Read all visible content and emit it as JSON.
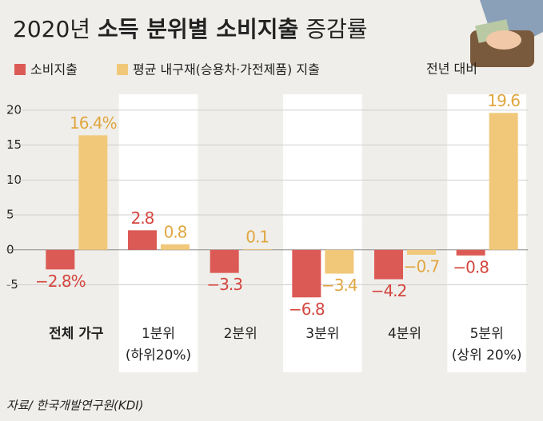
{
  "chart_data": {
    "type": "bar",
    "title": [
      "2020년",
      "소득 분위별 소비지출",
      "증감률"
    ],
    "note": "전년 대비",
    "source": "자료/ 한국개발연구원(KDI)",
    "categories": [
      [
        "전체 가구"
      ],
      [
        "1분위",
        "(하위20%)"
      ],
      [
        "2분위"
      ],
      [
        "3분위"
      ],
      [
        "4분위"
      ],
      [
        "5분위",
        "(상위 20%)"
      ]
    ],
    "series": [
      {
        "name": "소비지출",
        "color": "#dc5a55",
        "values": [
          -2.8,
          2.8,
          -3.3,
          -6.8,
          -4.2,
          -0.8
        ],
        "value_labels": [
          "−2.8%",
          "2.8",
          "−3.3",
          "−6.8",
          "−4.2",
          "−0.8"
        ]
      },
      {
        "name": "평균 내구재(승용차·가전제품) 지출",
        "color": "#f1c87a",
        "values": [
          16.4,
          0.8,
          0.1,
          -3.4,
          -0.7,
          19.6
        ],
        "value_labels": [
          "16.4%",
          "0.8",
          "0.1",
          "−3.4",
          "−0.7",
          "19.6"
        ]
      }
    ],
    "ylim": [
      -9.4,
      20.9
    ],
    "yticks": [
      -5,
      0,
      5,
      10,
      15,
      20
    ],
    "grid": true
  }
}
